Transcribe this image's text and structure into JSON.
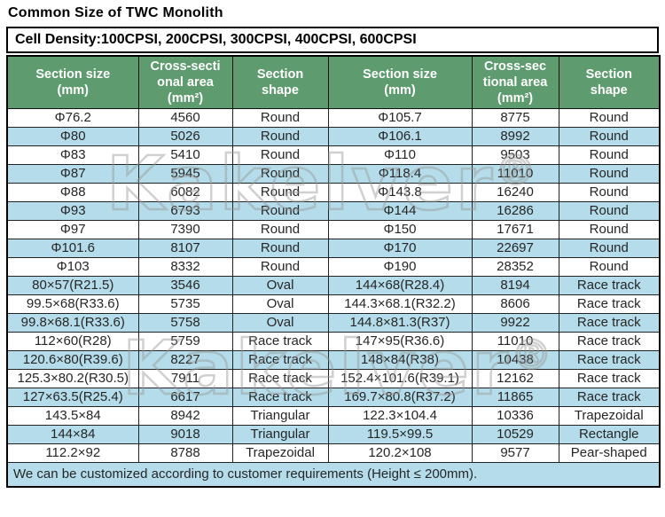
{
  "page": {
    "title": "Common Size of TWC Monolith"
  },
  "cell_density": "Cell Density:100CPSI, 200CPSI, 300CPSI, 400CPSI, 600CPSI",
  "colors": {
    "header_green": "#5e9c6f",
    "row_blue": "#b5dcea",
    "border_dark": "#1a1a1a",
    "text_dark": "#262626"
  },
  "watermark": {
    "text": "Kakelver",
    "reg": "®"
  },
  "table": {
    "headers": [
      "Section size\n(mm)",
      "Cross-secti\nonal area\n(mm²)",
      "Section\nshape",
      "Section size\n(mm)",
      "Cross-sec\ntional area\n(mm²)",
      "Section\nshape"
    ],
    "rows": [
      [
        "Φ76.2",
        "4560",
        "Round",
        "Φ105.7",
        "8775",
        "Round"
      ],
      [
        "Φ80",
        "5026",
        "Round",
        "Φ106.1",
        "8992",
        "Round"
      ],
      [
        "Φ83",
        "5410",
        "Round",
        "Φ110",
        "9503",
        "Round"
      ],
      [
        "Φ87",
        "5945",
        "Round",
        "Φ118.4",
        "11010",
        "Round"
      ],
      [
        "Φ88",
        "6082",
        "Round",
        "Φ143.8",
        "16240",
        "Round"
      ],
      [
        "Φ93",
        "6793",
        "Round",
        "Φ144",
        "16286",
        "Round"
      ],
      [
        "Φ97",
        "7390",
        "Round",
        "Φ150",
        "17671",
        "Round"
      ],
      [
        "Φ101.6",
        "8107",
        "Round",
        "Φ170",
        "22697",
        "Round"
      ],
      [
        "Φ103",
        "8332",
        "Round",
        "Φ190",
        "28352",
        "Round"
      ],
      [
        "80×57(R21.5)",
        "3546",
        "Oval",
        "144×68(R28.4)",
        "8194",
        "Race track"
      ],
      [
        "99.5×68(R33.6)",
        "5735",
        "Oval",
        "144.3×68.1(R32.2)",
        "8606",
        "Race track"
      ],
      [
        "99.8×68.1(R33.6)",
        "5758",
        "Oval",
        "144.8×81.3(R37)",
        "9922",
        "Race track"
      ],
      [
        "112×60(R28)",
        "5759",
        "Race track",
        "147×95(R36.6)",
        "11010",
        "Race track"
      ],
      [
        "120.6×80(R39.6)",
        "8227",
        "Race track",
        "148×84(R38)",
        "10438",
        "Race track"
      ],
      [
        "125.3×80.2(R30.5)",
        "7911",
        "Race track",
        "152.4×101.6(R39.1)",
        "12162",
        "Race track"
      ],
      [
        "127×63.5(R25.4)",
        "6617",
        "Race track",
        "169.7×80.8(R37.2)",
        "11865",
        "Race track"
      ],
      [
        "143.5×84",
        "8942",
        "Triangular",
        "122.3×104.4",
        "10336",
        "Trapezoidal"
      ],
      [
        "144×84",
        "9018",
        "Triangular",
        "119.5×99.5",
        "10529",
        "Rectangle"
      ],
      [
        "112.2×92",
        "8788",
        "Trapezoidal",
        "120.2×108",
        "9577",
        "Pear-shaped"
      ]
    ],
    "footer": "We can be customized according to customer requirements (Height ≤ 200mm)."
  }
}
